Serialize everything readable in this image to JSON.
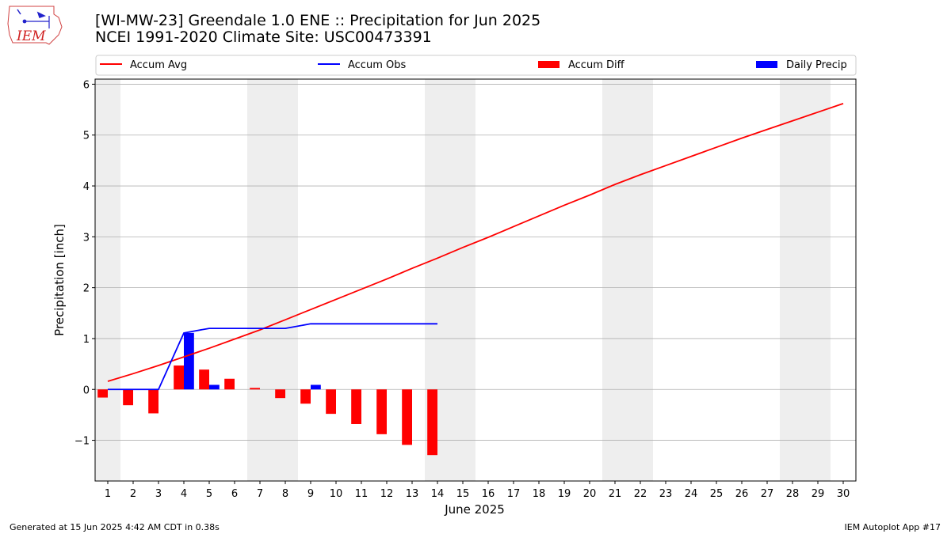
{
  "header": {
    "title_line1": "[WI-MW-23] Greendale 1.0 ENE :: Precipitation for Jun 2025",
    "title_line2": "NCEI 1991-2020 Climate Site: USC00473391",
    "logo_text": "IEM"
  },
  "footer": {
    "generated": "Generated at 15 Jun 2025 4:42 AM CDT in 0.38s",
    "app": "IEM Autoplot App #17"
  },
  "colors": {
    "accum_avg": "#ff0000",
    "accum_obs": "#0000ff",
    "accum_diff": "#ff0000",
    "daily_precip": "#0000ff",
    "weekend_shade": "#eeeeee",
    "grid": "#b0b0b0"
  },
  "chart_data": {
    "type": "bar",
    "xlabel": "June 2025",
    "ylabel": "Precipitation [inch]",
    "xlim": [
      0.5,
      30.5
    ],
    "ylim": [
      -1.8,
      6.1
    ],
    "yticks": [
      -1,
      0,
      1,
      2,
      3,
      4,
      5,
      6
    ],
    "ytick_labels": [
      "−1",
      "0",
      "1",
      "2",
      "3",
      "4",
      "5",
      "6"
    ],
    "grid": "horizontal",
    "legend_position": "top",
    "days": [
      1,
      2,
      3,
      4,
      5,
      6,
      7,
      8,
      9,
      10,
      11,
      12,
      13,
      14,
      15,
      16,
      17,
      18,
      19,
      20,
      21,
      22,
      23,
      24,
      25,
      26,
      27,
      28,
      29,
      30
    ],
    "weekend_day_spans": [
      [
        0.5,
        1.5
      ],
      [
        6.5,
        8.5
      ],
      [
        13.5,
        15.5
      ],
      [
        20.5,
        22.5
      ],
      [
        27.5,
        29.5
      ]
    ],
    "series": [
      {
        "name": "Accum Avg",
        "kind": "line",
        "x": [
          1,
          2,
          3,
          4,
          5,
          6,
          7,
          8,
          9,
          10,
          11,
          12,
          13,
          14,
          15,
          16,
          17,
          18,
          19,
          20,
          21,
          22,
          23,
          24,
          25,
          26,
          27,
          28,
          29,
          30
        ],
        "values": [
          0.16,
          0.31,
          0.47,
          0.64,
          0.81,
          0.99,
          1.17,
          1.37,
          1.57,
          1.77,
          1.97,
          2.17,
          2.38,
          2.58,
          2.79,
          2.99,
          3.2,
          3.41,
          3.62,
          3.82,
          4.03,
          4.22,
          4.4,
          4.58,
          4.76,
          4.94,
          5.11,
          5.28,
          5.45,
          5.62
        ]
      },
      {
        "name": "Accum Obs",
        "kind": "line",
        "x": [
          1,
          2,
          3,
          4,
          5,
          6,
          7,
          8,
          9,
          10,
          11,
          12,
          13,
          14
        ],
        "values": [
          0.0,
          0.0,
          0.0,
          1.11,
          1.2,
          1.2,
          1.2,
          1.2,
          1.29,
          1.29,
          1.29,
          1.29,
          1.29,
          1.29
        ]
      },
      {
        "name": "Accum Diff",
        "kind": "bar",
        "offset": -0.2,
        "x": [
          1,
          2,
          3,
          4,
          5,
          6,
          7,
          8,
          9,
          10,
          11,
          12,
          13,
          14
        ],
        "values": [
          -0.16,
          -0.31,
          -0.47,
          0.47,
          0.39,
          0.21,
          0.03,
          -0.17,
          -0.28,
          -0.48,
          -0.68,
          -0.88,
          -1.09,
          -1.29
        ]
      },
      {
        "name": "Daily Precip",
        "kind": "bar",
        "offset": 0.2,
        "x": [
          1,
          2,
          3,
          4,
          5,
          6,
          7,
          8,
          9,
          10,
          11,
          12,
          13,
          14
        ],
        "values": [
          0,
          0,
          0,
          1.11,
          0.09,
          0,
          0,
          0,
          0.09,
          0,
          0,
          0,
          0,
          0
        ]
      }
    ]
  }
}
